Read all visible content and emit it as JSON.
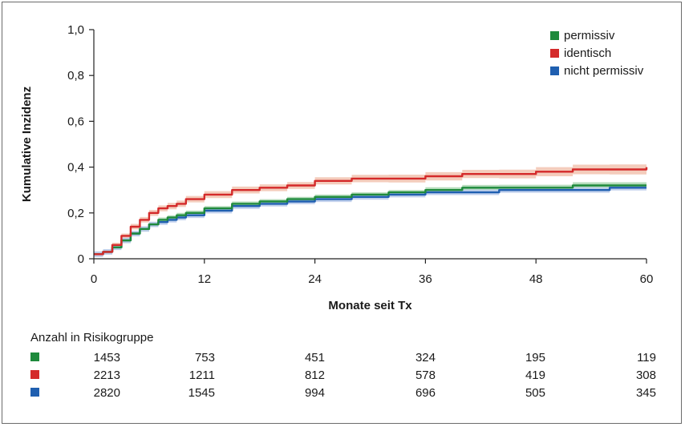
{
  "chart_data": {
    "type": "line",
    "xlabel": "Monate seit Tx",
    "ylabel": "Kumulative Inzidenz",
    "xlim": [
      0,
      60
    ],
    "ylim": [
      0,
      1.0
    ],
    "x_ticks": [
      0,
      12,
      24,
      36,
      48,
      60
    ],
    "y_ticks": [
      0,
      0.2,
      0.4,
      0.6,
      0.8,
      1.0
    ],
    "x_tick_labels": [
      "0",
      "12",
      "24",
      "36",
      "48",
      "60"
    ],
    "y_tick_labels": [
      "0",
      "0,2",
      "0,4",
      "0,6",
      "0,8",
      "1,0"
    ],
    "grid": false,
    "legend_position": "top-right",
    "series": [
      {
        "name": "permissiv",
        "color": "#1e8a3c",
        "band_color": "#a9d6b0",
        "x": [
          0,
          1,
          2,
          3,
          4,
          5,
          6,
          7,
          8,
          9,
          10,
          12,
          15,
          18,
          21,
          24,
          28,
          32,
          36,
          40,
          44,
          48,
          52,
          56,
          60
        ],
        "y": [
          0.02,
          0.03,
          0.05,
          0.08,
          0.11,
          0.13,
          0.15,
          0.17,
          0.18,
          0.19,
          0.2,
          0.22,
          0.24,
          0.25,
          0.26,
          0.27,
          0.28,
          0.29,
          0.3,
          0.31,
          0.31,
          0.31,
          0.32,
          0.32,
          0.32
        ],
        "band": [
          0.01,
          0.01,
          0.01,
          0.01,
          0.01,
          0.01,
          0.01,
          0.01,
          0.01,
          0.01,
          0.01,
          0.01,
          0.01,
          0.01,
          0.01,
          0.01,
          0.01,
          0.01,
          0.012,
          0.012,
          0.013,
          0.013,
          0.014,
          0.014,
          0.015
        ]
      },
      {
        "name": "identisch",
        "color": "#d42a2a",
        "band_color": "#f2c3b0",
        "x": [
          0,
          1,
          2,
          3,
          4,
          5,
          6,
          7,
          8,
          9,
          10,
          12,
          15,
          18,
          21,
          24,
          28,
          32,
          36,
          40,
          44,
          48,
          52,
          56,
          60
        ],
        "y": [
          0.02,
          0.03,
          0.06,
          0.1,
          0.14,
          0.17,
          0.2,
          0.22,
          0.23,
          0.24,
          0.26,
          0.28,
          0.3,
          0.31,
          0.32,
          0.34,
          0.35,
          0.35,
          0.36,
          0.37,
          0.37,
          0.38,
          0.39,
          0.39,
          0.4
        ],
        "band": [
          0.01,
          0.01,
          0.01,
          0.01,
          0.012,
          0.012,
          0.013,
          0.013,
          0.014,
          0.014,
          0.014,
          0.015,
          0.015,
          0.015,
          0.015,
          0.016,
          0.016,
          0.017,
          0.018,
          0.018,
          0.019,
          0.02,
          0.021,
          0.022,
          0.023
        ]
      },
      {
        "name": "nicht permissiv",
        "color": "#1f5fb0",
        "band_color": "#b7c9ea",
        "x": [
          0,
          1,
          2,
          3,
          4,
          5,
          6,
          7,
          8,
          9,
          10,
          12,
          15,
          18,
          21,
          24,
          28,
          32,
          36,
          40,
          44,
          48,
          52,
          56,
          60
        ],
        "y": [
          0.02,
          0.03,
          0.05,
          0.08,
          0.11,
          0.13,
          0.15,
          0.16,
          0.17,
          0.18,
          0.19,
          0.21,
          0.23,
          0.24,
          0.25,
          0.26,
          0.27,
          0.28,
          0.29,
          0.29,
          0.3,
          0.3,
          0.3,
          0.31,
          0.31
        ]
      }
    ],
    "risk_table": {
      "title": "Anzahl in Risikogruppe",
      "rows": [
        {
          "color": "#1e8a3c",
          "values": [
            "1453",
            "753",
            "451",
            "324",
            "195",
            "119"
          ]
        },
        {
          "color": "#d42a2a",
          "values": [
            "2213",
            "1211",
            "812",
            "578",
            "419",
            "308"
          ]
        },
        {
          "color": "#1f5fb0",
          "values": [
            "2820",
            "1545",
            "994",
            "696",
            "505",
            "345"
          ]
        }
      ]
    }
  }
}
